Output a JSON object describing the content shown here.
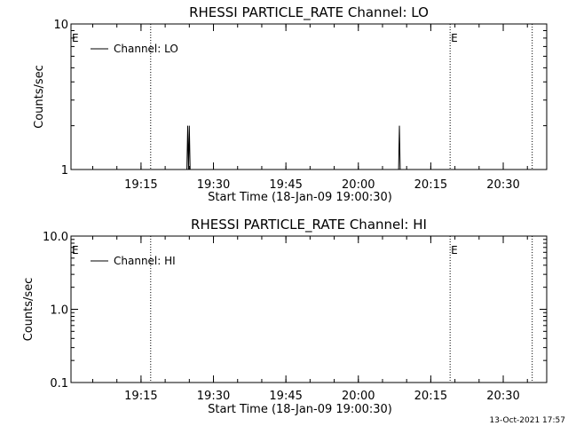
{
  "footer_timestamp": "13-Oct-2021 17:57",
  "chart_data": [
    {
      "type": "line",
      "title": "RHESSI PARTICLE_RATE Channel: LO",
      "xlabel": "Start Time (18-Jan-09 19:00:30)",
      "ylabel": "Counts/sec",
      "yscale": "log",
      "ylim": [
        1,
        10
      ],
      "y_tick_labels": [
        "1",
        "10"
      ],
      "y_tick_values": [
        1,
        10
      ],
      "x_tick_labels": [
        "19:15",
        "19:30",
        "19:45",
        "20:00",
        "20:15",
        "20:30"
      ],
      "x_tick_values": [
        "19:15",
        "19:30",
        "19:45",
        "20:00",
        "20:15",
        "20:30"
      ],
      "xlim": [
        "19:00:30",
        "20:39:00"
      ],
      "vertical_markers": [
        "19:17",
        "20:19",
        "20:36"
      ],
      "marker_labels": [
        {
          "text": "E",
          "at": "19:00:30"
        },
        {
          "text": "E",
          "at": "20:19"
        }
      ],
      "series": [
        {
          "name": "Channel: LO",
          "points": [
            [
              "19:24:30",
              1
            ],
            [
              "19:24:40",
              2
            ],
            [
              "19:24:50",
              1
            ],
            [
              "19:25:00",
              2
            ],
            [
              "19:25:10",
              1
            ],
            [
              "20:08:20",
              1
            ],
            [
              "20:08:30",
              2
            ],
            [
              "20:08:40",
              1
            ]
          ]
        }
      ],
      "legend_position": "top-left"
    },
    {
      "type": "line",
      "title": "RHESSI PARTICLE_RATE Channel: HI",
      "xlabel": "Start Time (18-Jan-09 19:00:30)",
      "ylabel": "Counts/sec",
      "yscale": "log",
      "ylim": [
        0.1,
        10
      ],
      "y_tick_labels": [
        "0.1",
        "1.0",
        "10.0"
      ],
      "y_tick_values": [
        0.1,
        1.0,
        10.0
      ],
      "x_tick_labels": [
        "19:15",
        "19:30",
        "19:45",
        "20:00",
        "20:15",
        "20:30"
      ],
      "x_tick_values": [
        "19:15",
        "19:30",
        "19:45",
        "20:00",
        "20:15",
        "20:30"
      ],
      "xlim": [
        "19:00:30",
        "20:39:00"
      ],
      "vertical_markers": [
        "19:17",
        "20:19",
        "20:36"
      ],
      "marker_labels": [
        {
          "text": "E",
          "at": "19:00:30"
        },
        {
          "text": "E",
          "at": "20:19"
        }
      ],
      "series": [
        {
          "name": "Channel: HI",
          "points": []
        }
      ],
      "legend_position": "top-left"
    }
  ]
}
